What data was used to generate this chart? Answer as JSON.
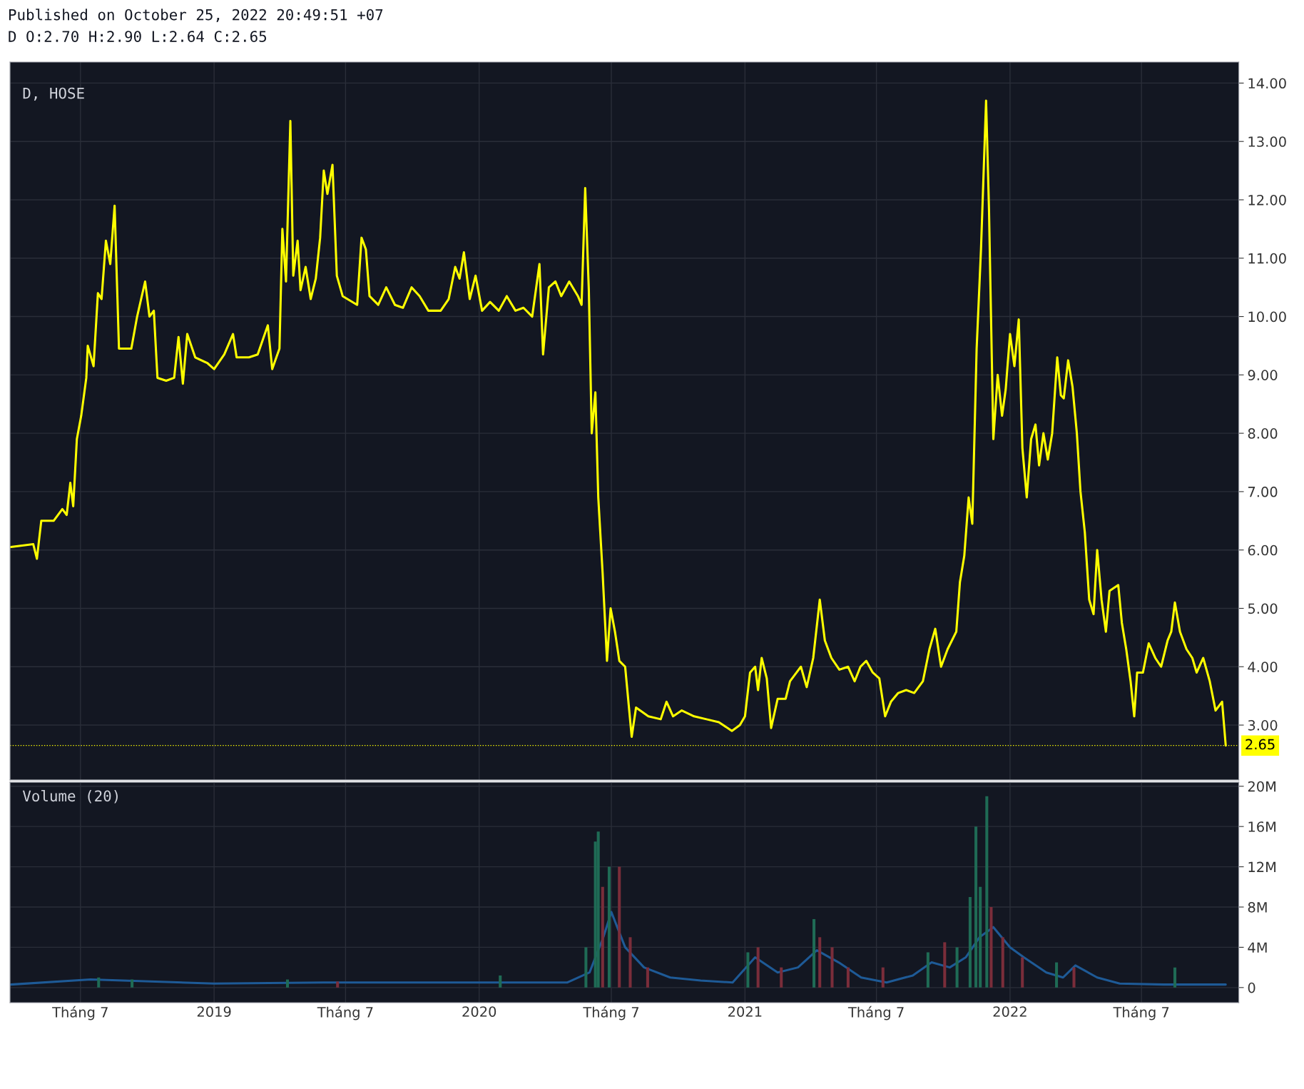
{
  "chart_data": [
    {
      "type": "line",
      "title": "D, HOSE",
      "annotations": [
        "Published on October 25, 2022 20:49:51 +07",
        "D O:2.70 H:2.90 L:2.64 C:2.65"
      ],
      "xlim": [
        "2018-03-26",
        "2022-11-12"
      ],
      "ylim": [
        2.06,
        14.36
      ],
      "xticks": [
        {
          "value": "2018-07-01",
          "label": null
        },
        {
          "value": "2019-01-01",
          "label": null
        },
        {
          "value": "2019-07-01",
          "label": null
        },
        {
          "value": "2020-01-01",
          "label": null
        },
        {
          "value": "2020-07-01",
          "label": null
        },
        {
          "value": "2021-01-01",
          "label": null
        },
        {
          "value": "2021-07-01",
          "label": null
        },
        {
          "value": "2022-01-01",
          "label": null
        },
        {
          "value": "2022-07-01",
          "label": null
        }
      ],
      "yticks": [
        {
          "value": 3,
          "label": "3.00"
        },
        {
          "value": 4,
          "label": "4.00"
        },
        {
          "value": 5,
          "label": "5.00"
        },
        {
          "value": 6,
          "label": "6.00"
        },
        {
          "value": 7,
          "label": "7.00"
        },
        {
          "value": 8,
          "label": "8.00"
        },
        {
          "value": 9,
          "label": "9.00"
        },
        {
          "value": 10,
          "label": "10.00"
        },
        {
          "value": 11,
          "label": "11.00"
        },
        {
          "value": 12,
          "label": "12.00"
        },
        {
          "value": 13,
          "label": "13.00"
        },
        {
          "value": 14,
          "label": "14.00"
        }
      ],
      "tick_labels": "y",
      "grid": true,
      "ref_lines": [
        {
          "axis": "y",
          "value": 2.65,
          "label": "2.65",
          "color": "#ffff00",
          "line_style": "dotted"
        }
      ],
      "series": [
        {
          "color": "#ffff00",
          "x": [
            "2018-03-27",
            "2018-04-27",
            "2018-05-02",
            "2018-05-08",
            "2018-05-25",
            "2018-06-06",
            "2018-06-12",
            "2018-06-17",
            "2018-06-21",
            "2018-06-26",
            "2018-07-02",
            "2018-07-09",
            "2018-07-11",
            "2018-07-19",
            "2018-07-25",
            "2018-07-30",
            "2018-08-05",
            "2018-08-11",
            "2018-08-17",
            "2018-08-23",
            "2018-09-09",
            "2018-09-17",
            "2018-09-28",
            "2018-10-04",
            "2018-10-10",
            "2018-10-15",
            "2018-10-27",
            "2018-11-07",
            "2018-11-13",
            "2018-11-19",
            "2018-11-25",
            "2018-12-06",
            "2018-12-23",
            "2019-01-01",
            "2019-01-15",
            "2019-01-27",
            "2019-02-01",
            "2019-02-18",
            "2019-03-02",
            "2019-03-16",
            "2019-03-22",
            "2019-04-01",
            "2019-04-05",
            "2019-04-10",
            "2019-04-16",
            "2019-04-20",
            "2019-04-26",
            "2019-04-30",
            "2019-05-07",
            "2019-05-14",
            "2019-05-21",
            "2019-05-27",
            "2019-06-01",
            "2019-06-06",
            "2019-06-13",
            "2019-06-19",
            "2019-06-27",
            "2019-07-17",
            "2019-07-23",
            "2019-07-29",
            "2019-08-03",
            "2019-08-15",
            "2019-08-26",
            "2019-09-07",
            "2019-09-18",
            "2019-09-30",
            "2019-10-11",
            "2019-10-23",
            "2019-11-09",
            "2019-11-20",
            "2019-11-29",
            "2019-12-05",
            "2019-12-11",
            "2019-12-19",
            "2019-12-27",
            "2020-01-05",
            "2020-01-16",
            "2020-01-28",
            "2020-02-08",
            "2020-02-20",
            "2020-03-02",
            "2020-03-14",
            "2020-03-19",
            "2020-03-24",
            "2020-03-29",
            "2020-04-06",
            "2020-04-15",
            "2020-04-23",
            "2020-05-04",
            "2020-05-16",
            "2020-05-21",
            "2020-05-26",
            "2020-05-31",
            "2020-06-04",
            "2020-06-09",
            "2020-06-13",
            "2020-06-19",
            "2020-06-25",
            "2020-06-30",
            "2020-07-06",
            "2020-07-12",
            "2020-07-20",
            "2020-07-29",
            "2020-08-04",
            "2020-08-21",
            "2020-09-07",
            "2020-09-15",
            "2020-09-24",
            "2020-10-06",
            "2020-10-23",
            "2020-11-09",
            "2020-11-26",
            "2020-12-14",
            "2020-12-25",
            "2021-01-01",
            "2021-01-08",
            "2021-01-15",
            "2021-01-19",
            "2021-01-24",
            "2021-01-31",
            "2021-02-06",
            "2021-02-15",
            "2021-02-26",
            "2021-03-04",
            "2021-03-13",
            "2021-03-19",
            "2021-03-27",
            "2021-04-05",
            "2021-04-14",
            "2021-04-21",
            "2021-04-30",
            "2021-05-11",
            "2021-05-23",
            "2021-06-01",
            "2021-06-09",
            "2021-06-17",
            "2021-06-26",
            "2021-07-05",
            "2021-07-13",
            "2021-07-21",
            "2021-07-31",
            "2021-08-11",
            "2021-08-22",
            "2021-09-03",
            "2021-09-12",
            "2021-09-20",
            "2021-09-28",
            "2021-10-07",
            "2021-10-19",
            "2021-10-24",
            "2021-10-30",
            "2021-11-05",
            "2021-11-10",
            "2021-11-16",
            "2021-11-22",
            "2021-11-29",
            "2021-12-03",
            "2021-12-09",
            "2021-12-15",
            "2021-12-21",
            "2021-12-26",
            "2022-01-01",
            "2022-01-07",
            "2022-01-13",
            "2022-01-18",
            "2022-01-24",
            "2022-01-30",
            "2022-02-05",
            "2022-02-10",
            "2022-02-16",
            "2022-02-22",
            "2022-02-28",
            "2022-03-07",
            "2022-03-12",
            "2022-03-16",
            "2022-03-22",
            "2022-03-28",
            "2022-04-03",
            "2022-04-08",
            "2022-04-14",
            "2022-04-20",
            "2022-04-26",
            "2022-05-01",
            "2022-05-07",
            "2022-05-13",
            "2022-05-18",
            "2022-05-30",
            "2022-06-04",
            "2022-06-10",
            "2022-06-16",
            "2022-06-21",
            "2022-06-25",
            "2022-07-03",
            "2022-07-11",
            "2022-07-20",
            "2022-07-28",
            "2022-08-06",
            "2022-08-11",
            "2022-08-16",
            "2022-08-23",
            "2022-09-01",
            "2022-09-09",
            "2022-09-15",
            "2022-09-24",
            "2022-10-03",
            "2022-10-11",
            "2022-10-20",
            "2022-10-25"
          ],
          "values": [
            6.05,
            6.1,
            5.85,
            6.5,
            6.5,
            6.7,
            6.6,
            7.15,
            6.75,
            7.9,
            8.3,
            8.95,
            9.5,
            9.15,
            10.4,
            10.3,
            11.3,
            10.9,
            11.9,
            9.45,
            9.45,
            10.0,
            10.6,
            10.0,
            10.1,
            8.95,
            8.9,
            8.95,
            9.65,
            8.85,
            9.7,
            9.3,
            9.2,
            9.1,
            9.35,
            9.7,
            9.3,
            9.3,
            9.35,
            9.85,
            9.1,
            9.45,
            11.5,
            10.6,
            13.35,
            10.7,
            11.3,
            10.45,
            10.85,
            10.3,
            10.65,
            11.35,
            12.5,
            12.1,
            12.6,
            10.7,
            10.35,
            10.2,
            11.35,
            11.15,
            10.35,
            10.2,
            10.5,
            10.2,
            10.15,
            10.5,
            10.35,
            10.1,
            10.1,
            10.3,
            10.85,
            10.65,
            11.1,
            10.3,
            10.7,
            10.1,
            10.25,
            10.1,
            10.35,
            10.1,
            10.15,
            10.0,
            10.45,
            10.9,
            9.35,
            10.5,
            10.6,
            10.35,
            10.6,
            10.35,
            10.2,
            12.2,
            10.45,
            8.0,
            8.7,
            6.9,
            5.6,
            4.1,
            5.0,
            4.6,
            4.1,
            4.0,
            2.8,
            3.3,
            3.15,
            3.1,
            3.4,
            3.15,
            3.25,
            3.15,
            3.1,
            3.05,
            2.9,
            3.0,
            3.15,
            3.9,
            4.0,
            3.6,
            4.15,
            3.8,
            2.95,
            3.45,
            3.45,
            3.75,
            3.9,
            4.0,
            3.65,
            4.15,
            5.15,
            4.45,
            4.15,
            3.95,
            4.0,
            3.75,
            4.0,
            4.1,
            3.9,
            3.8,
            3.15,
            3.4,
            3.55,
            3.6,
            3.55,
            3.75,
            4.3,
            4.65,
            4.0,
            4.3,
            4.6,
            5.45,
            5.9,
            6.9,
            6.45,
            9.45,
            11.15,
            13.7,
            11.85,
            7.9,
            9.0,
            8.3,
            8.75,
            9.7,
            9.15,
            9.95,
            7.75,
            6.9,
            7.9,
            8.15,
            7.45,
            8.0,
            7.55,
            8.0,
            9.3,
            8.65,
            8.6,
            9.25,
            8.8,
            8.0,
            7.0,
            6.3,
            5.15,
            4.9,
            6.0,
            5.15,
            4.6,
            5.3,
            5.4,
            4.75,
            4.3,
            3.75,
            3.15,
            3.9,
            3.9,
            4.4,
            4.15,
            4.0,
            4.45,
            4.6,
            5.1,
            4.6,
            4.3,
            4.15,
            3.9,
            4.15,
            3.75,
            3.25,
            3.4,
            2.65
          ]
        }
      ]
    },
    {
      "type": "bar",
      "title": "Volume (20)",
      "xlim": [
        "2018-03-26",
        "2022-11-12"
      ],
      "ylim": [
        -1.5,
        20.4
      ],
      "xticks": [
        {
          "value": "2018-07-01",
          "label": "Tháng 7"
        },
        {
          "value": "2019-01-01",
          "label": "2019"
        },
        {
          "value": "2019-07-01",
          "label": "Tháng 7"
        },
        {
          "value": "2020-01-01",
          "label": "2020"
        },
        {
          "value": "2020-07-01",
          "label": "Tháng 7"
        },
        {
          "value": "2021-01-01",
          "label": "2021"
        },
        {
          "value": "2021-07-01",
          "label": "Tháng 7"
        },
        {
          "value": "2022-01-01",
          "label": "2022"
        },
        {
          "value": "2022-07-01",
          "label": "Tháng 7"
        }
      ],
      "yticks": [
        0,
        {
          "value": 4,
          "label": "4M"
        },
        {
          "value": 8,
          "label": "8M"
        },
        {
          "value": 12,
          "label": "12M"
        },
        {
          "value": 16,
          "label": "16M"
        },
        {
          "value": 20,
          "label": "20M"
        }
      ],
      "grid": true,
      "series": [
        {
          "type": "bar",
          "x": [
            "2018-07-26",
            "2018-09-10",
            "2019-04-12",
            "2019-06-20",
            "2020-01-30",
            "2020-05-27",
            "2020-06-09",
            "2020-06-13",
            "2020-06-19",
            "2020-06-28",
            "2020-07-12",
            "2020-07-27",
            "2020-08-20",
            "2021-01-05",
            "2021-01-19",
            "2021-02-20",
            "2021-04-06",
            "2021-04-14",
            "2021-05-01",
            "2021-05-23",
            "2021-07-10",
            "2021-09-10",
            "2021-10-03",
            "2021-10-20",
            "2021-11-07",
            "2021-11-15",
            "2021-11-21",
            "2021-11-30",
            "2021-12-06",
            "2021-12-22",
            "2022-01-18",
            "2022-03-06",
            "2022-03-30",
            "2022-08-16"
          ],
          "colors": [
            "#1f6b55",
            "#1f6b55",
            "#1f6b55",
            "#7a2d3a",
            "#1f6b55",
            "#1f6b55",
            "#1f6b55",
            "#1f6b55",
            "#7a2d3a",
            "#1f6b55",
            "#7a2d3a",
            "#7a2d3a",
            "#7a2d3a",
            "#1f6b55",
            "#7a2d3a",
            "#7a2d3a",
            "#1f6b55",
            "#7a2d3a",
            "#7a2d3a",
            "#7a2d3a",
            "#7a2d3a",
            "#1f6b55",
            "#7a2d3a",
            "#1f6b55",
            "#1f6b55",
            "#1f6b55",
            "#1f6b55",
            "#1f6b55",
            "#7a2d3a",
            "#7a2d3a",
            "#7a2d3a",
            "#1f6b55",
            "#7a2d3a",
            "#1f6b55"
          ],
          "values": [
            1,
            0.8,
            0.8,
            0.6,
            1.2,
            4,
            14.5,
            15.5,
            10,
            12,
            12,
            5,
            2,
            3.5,
            4,
            2,
            6.8,
            5,
            4,
            2,
            2,
            3.5,
            4.5,
            4,
            9,
            16,
            10,
            19,
            8,
            5,
            3,
            2.5,
            2,
            2
          ]
        },
        {
          "type": "line",
          "color": "#1e5a96",
          "x": [
            "2018-03-27",
            "2018-07-15",
            "2019-01-01",
            "2019-06-01",
            "2020-01-01",
            "2020-05-01",
            "2020-06-01",
            "2020-06-20",
            "2020-07-01",
            "2020-07-20",
            "2020-08-15",
            "2020-09-20",
            "2020-11-01",
            "2020-12-15",
            "2021-01-15",
            "2021-02-15",
            "2021-03-15",
            "2021-04-10",
            "2021-05-10",
            "2021-06-10",
            "2021-07-15",
            "2021-08-20",
            "2021-09-15",
            "2021-10-10",
            "2021-11-01",
            "2021-11-20",
            "2021-12-09",
            "2022-01-01",
            "2022-01-20",
            "2022-02-20",
            "2022-03-15",
            "2022-04-01",
            "2022-05-01",
            "2022-06-01",
            "2022-08-01",
            "2022-10-25"
          ],
          "values": [
            0.3,
            0.8,
            0.4,
            0.5,
            0.5,
            0.5,
            1.5,
            5,
            7.5,
            4,
            2,
            1,
            0.7,
            0.5,
            3,
            1.5,
            2,
            3.7,
            2.5,
            1,
            0.5,
            1.2,
            2.5,
            2,
            3,
            5,
            6,
            4,
            3,
            1.5,
            1,
            2.2,
            1,
            0.4,
            0.3,
            0.3
          ]
        }
      ]
    }
  ]
}
